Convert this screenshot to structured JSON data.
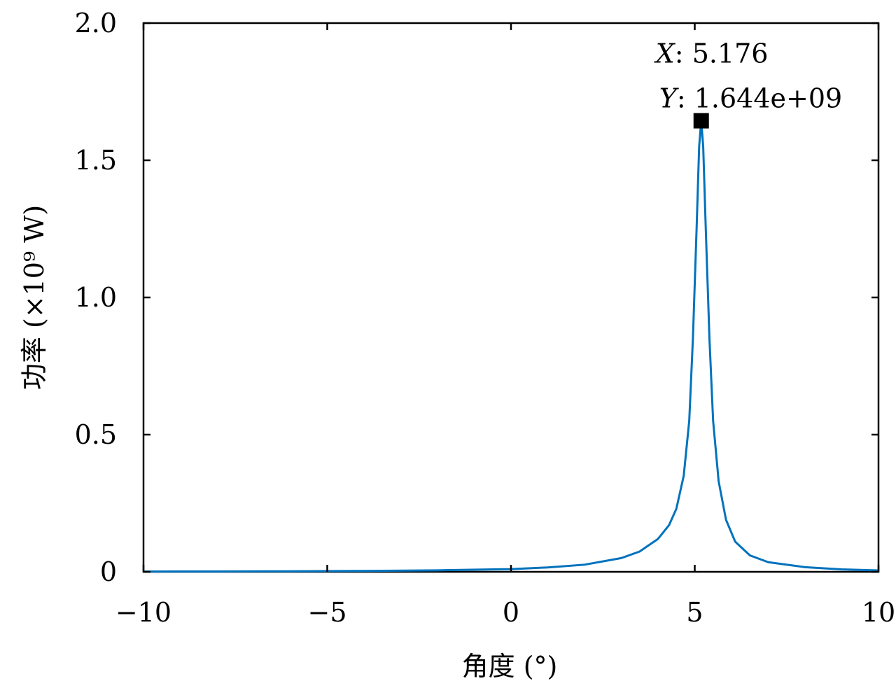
{
  "chart_data": {
    "type": "line",
    "title": "",
    "xlabel": "角度 (°)",
    "ylabel": "功率 (×10⁹ W)",
    "xlim": [
      -10,
      10
    ],
    "ylim": [
      0,
      2.0
    ],
    "x_ticks": [
      -10,
      -5,
      0,
      5,
      10
    ],
    "x_tick_labels": [
      "−10",
      "−5",
      "0",
      "5",
      "10"
    ],
    "y_ticks": [
      0,
      0.5,
      1.0,
      1.5,
      2.0
    ],
    "y_tick_labels": [
      "0",
      "0.5",
      "1.0",
      "1.5",
      "2.0"
    ],
    "grid": false,
    "series": [
      {
        "color": "#0072BD",
        "peak": {
          "x": 5.176,
          "y": 1.644
        },
        "points": [
          [
            -10,
            0.001
          ],
          [
            -8,
            0.0013
          ],
          [
            -6,
            0.002
          ],
          [
            -4,
            0.0032
          ],
          [
            -2,
            0.0055
          ],
          [
            0,
            0.01
          ],
          [
            1,
            0.016
          ],
          [
            2,
            0.026
          ],
          [
            3,
            0.05
          ],
          [
            3.5,
            0.074
          ],
          [
            4,
            0.12
          ],
          [
            4.3,
            0.17
          ],
          [
            4.5,
            0.23
          ],
          [
            4.7,
            0.35
          ],
          [
            4.85,
            0.55
          ],
          [
            4.95,
            0.85
          ],
          [
            5.05,
            1.25
          ],
          [
            5.12,
            1.55
          ],
          [
            5.176,
            1.644
          ],
          [
            5.23,
            1.55
          ],
          [
            5.3,
            1.25
          ],
          [
            5.4,
            0.85
          ],
          [
            5.5,
            0.55
          ],
          [
            5.65,
            0.33
          ],
          [
            5.85,
            0.19
          ],
          [
            6.1,
            0.11
          ],
          [
            6.5,
            0.06
          ],
          [
            7,
            0.035
          ],
          [
            8,
            0.017
          ],
          [
            9,
            0.009
          ],
          [
            10,
            0.005
          ]
        ]
      }
    ],
    "datatip": {
      "x_key": "X",
      "x_value": "5.176",
      "y_key": "Y",
      "y_value": "1.644e+09"
    }
  }
}
